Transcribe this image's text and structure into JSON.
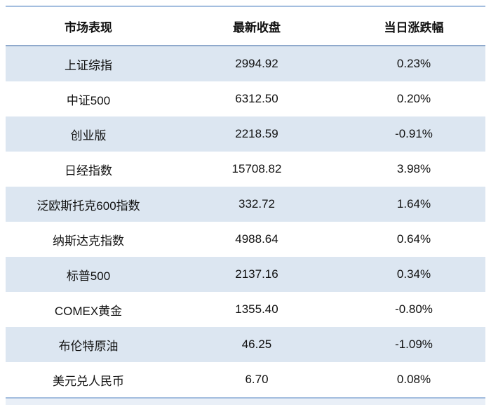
{
  "table": {
    "columns": [
      "市场表现",
      "最新收盘",
      "当日涨跌幅"
    ],
    "rows": [
      {
        "name": "上证综指",
        "close": "2994.92",
        "change": "0.23%"
      },
      {
        "name": "中证500",
        "close": "6312.50",
        "change": "0.20%"
      },
      {
        "name": "创业版",
        "close": "2218.59",
        "change": "-0.91%"
      },
      {
        "name": "日经指数",
        "close": "15708.82",
        "change": "3.98%"
      },
      {
        "name": "泛欧斯托克600指数",
        "close": "332.72",
        "change": "1.64%"
      },
      {
        "name": "纳斯达克指数",
        "close": "4988.64",
        "change": "0.64%"
      },
      {
        "name": "标普500",
        "close": "2137.16",
        "change": "0.34%"
      },
      {
        "name": "COMEX黄金",
        "close": "1355.40",
        "change": "-0.80%"
      },
      {
        "name": "布伦特原油",
        "close": "46.25",
        "change": "-1.09%"
      },
      {
        "name": "美元兑人民币",
        "close": "6.70",
        "change": "0.08%"
      }
    ]
  },
  "colors": {
    "stripe_fill": "#dce6f1",
    "accent_rule": "#a4bedf",
    "header_rule": "#8fa9cc",
    "footer_strip": "#e9eff7",
    "text": "#111111"
  }
}
